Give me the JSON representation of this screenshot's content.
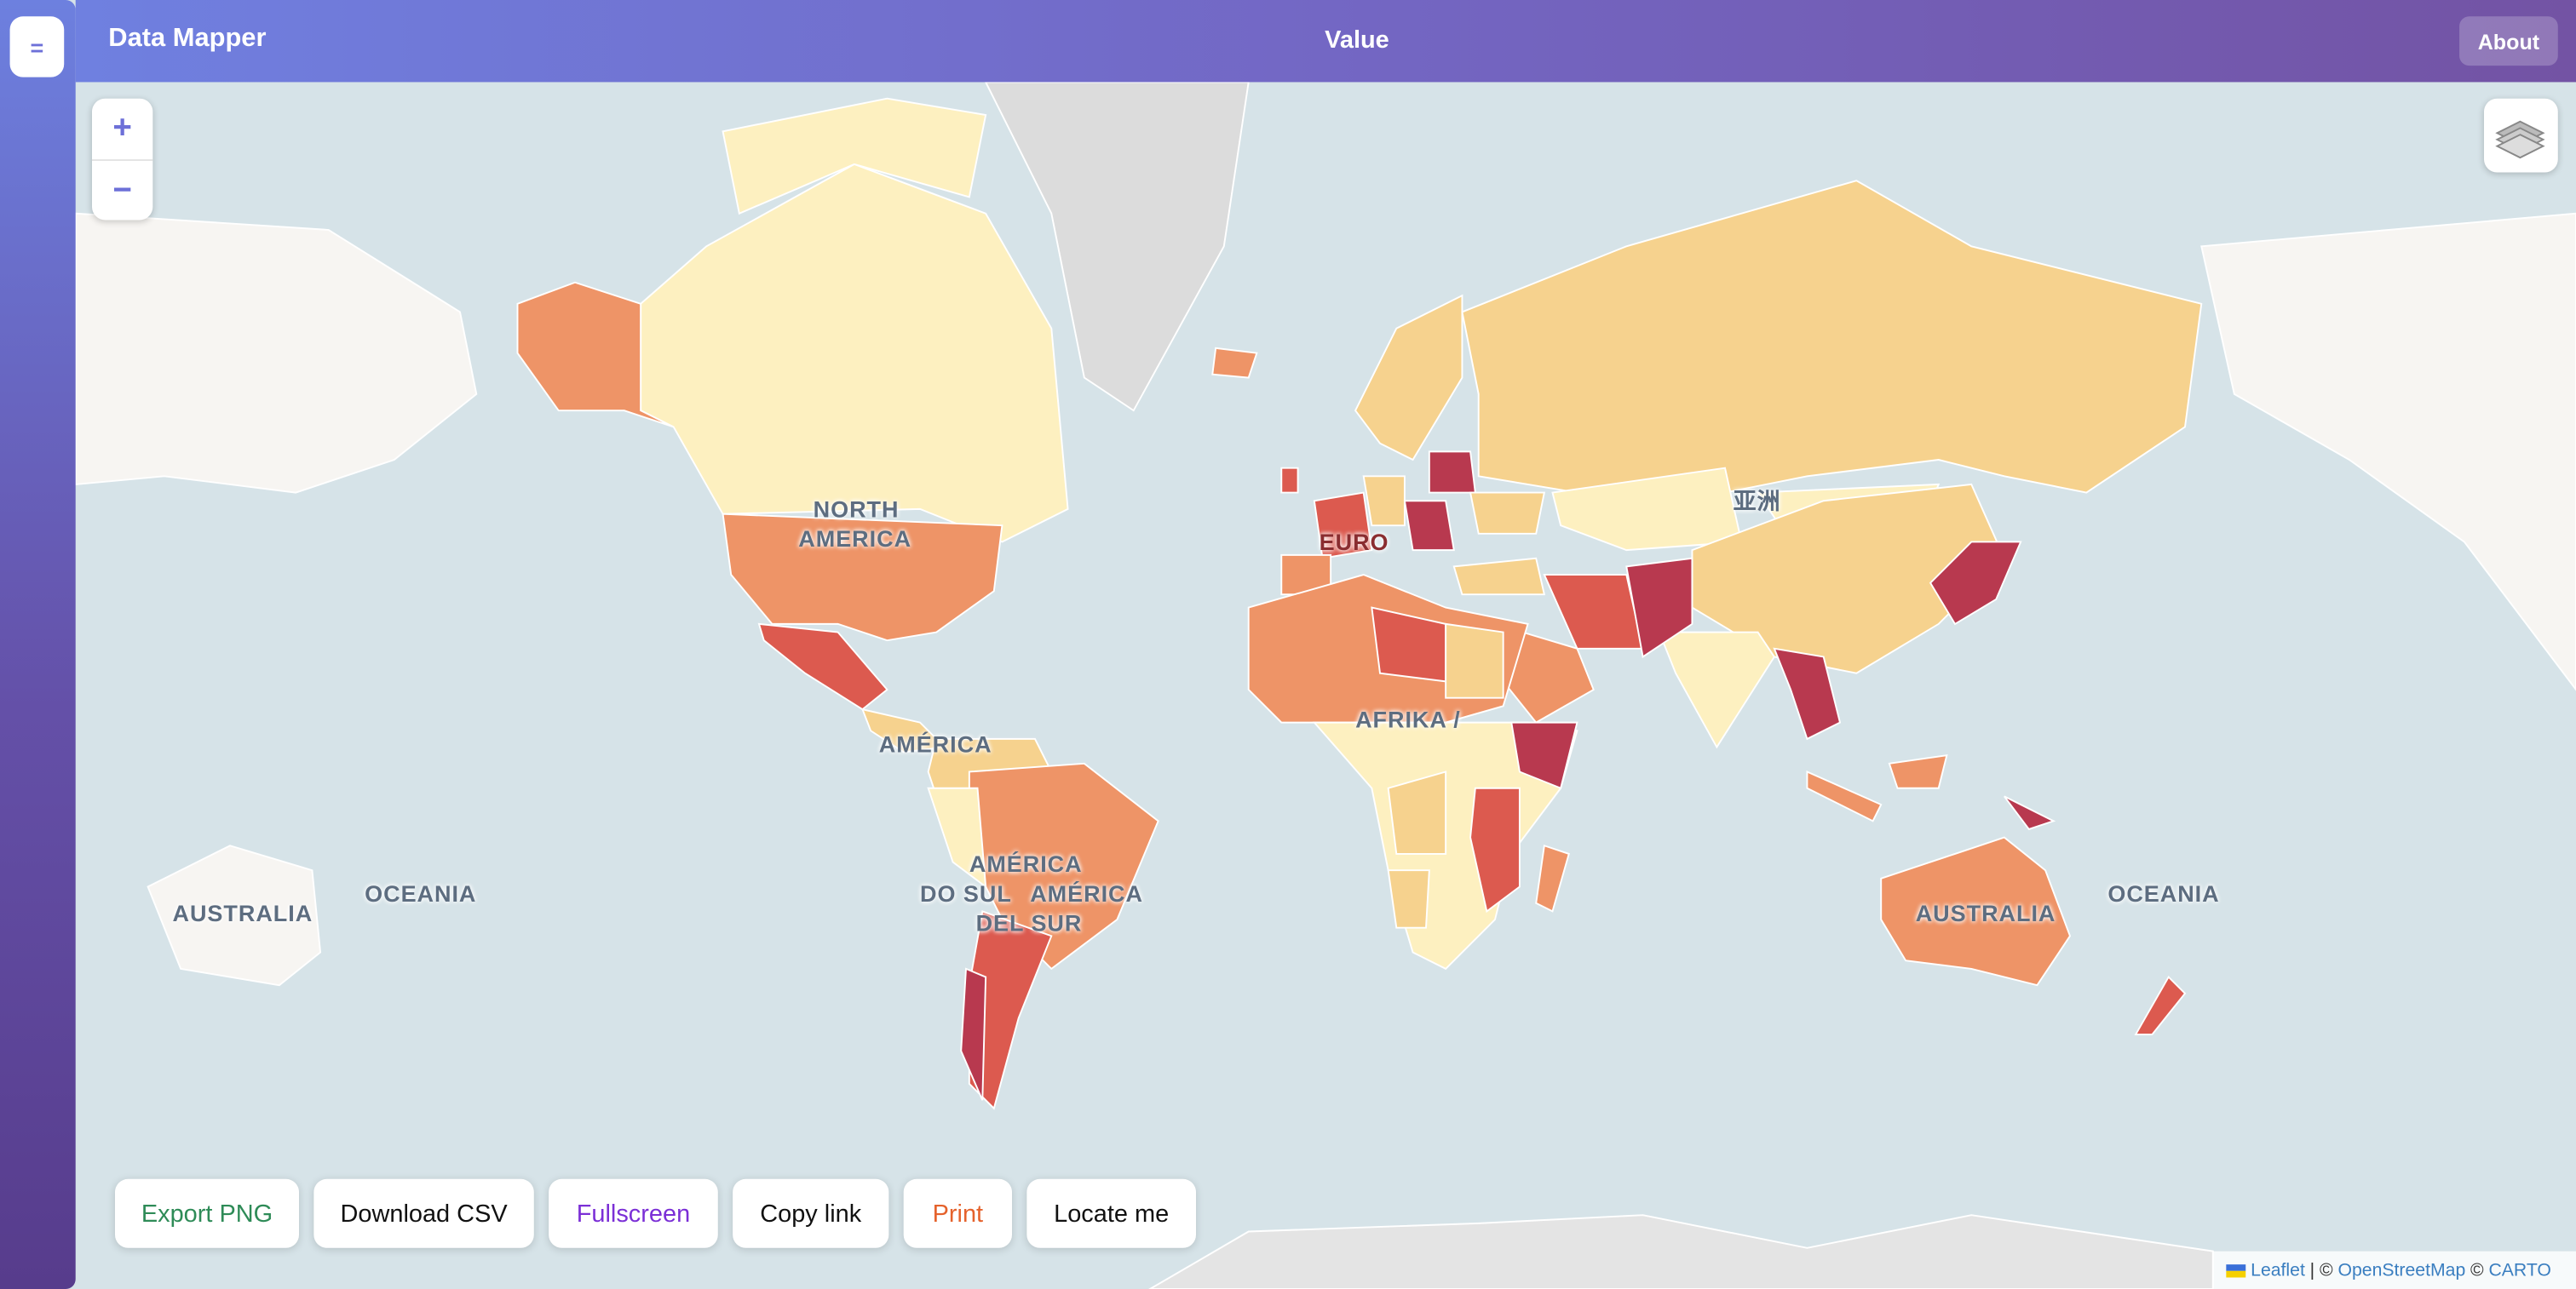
{
  "header": {
    "title": "Data Mapper",
    "subtitle": "Value",
    "about": "About"
  },
  "menu_icon": "=",
  "zoom": {
    "in": "+",
    "out": "−"
  },
  "map_labels": [
    "NORTH",
    "AMERICA",
    "AMÉRICA",
    "AMÉRICA",
    "DO SUL",
    "AMÉRICA",
    "DEL SUR",
    "AUSTRALIA",
    "OCEANIA",
    "AFRIKA /",
    "亚洲",
    "EURO"
  ],
  "toolbar": [
    "Export PNG",
    "Download CSV",
    "Fullscreen",
    "Copy link",
    "Print",
    "Locate me"
  ],
  "attribution": {
    "leaflet": "Leaflet",
    "sep1": "| ©",
    "osm": "OpenStreetMap",
    "sep2": "©",
    "carto": "CARTO"
  }
}
